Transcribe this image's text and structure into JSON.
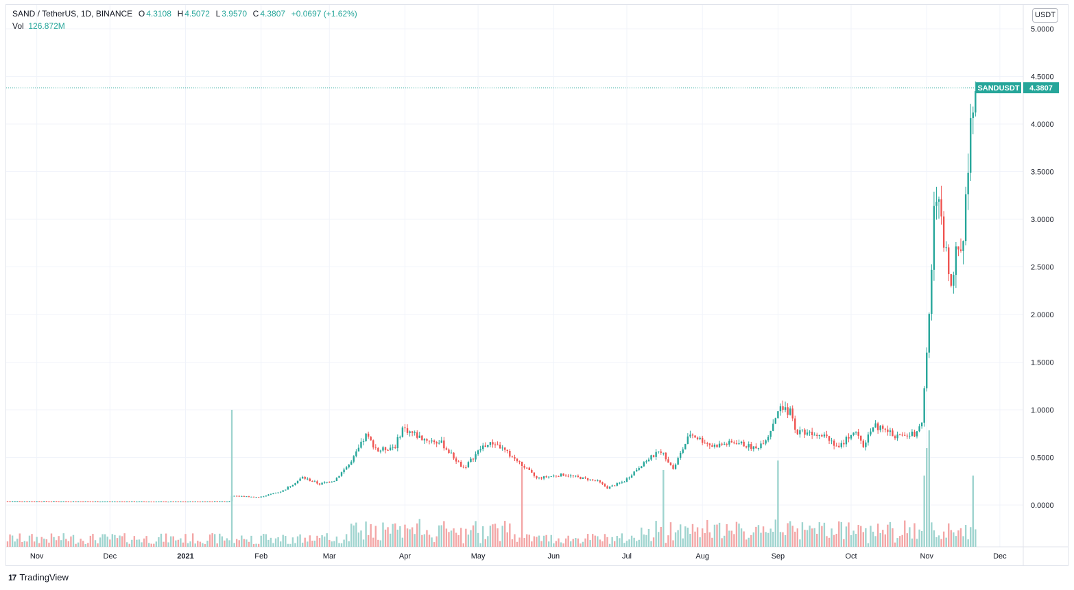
{
  "legend": {
    "symbol": "SAND / TetherUS, 1D, BINANCE",
    "open_label": "O",
    "open": "4.3108",
    "high_label": "H",
    "high": "4.5072",
    "low_label": "L",
    "low": "3.9570",
    "close_label": "C",
    "close": "4.3807",
    "change": "+0.0697 (+1.62%)",
    "vol_label": "Vol",
    "vol": "126.872M"
  },
  "currency_button": "USDT",
  "price_badge": {
    "symbol": "SANDUSDT",
    "price": "4.3807"
  },
  "branding": "TradingView",
  "colors": {
    "up": "#26a69a",
    "down": "#ef5350",
    "up_vol": "#9fd4cf",
    "down_vol": "#f3a6a6",
    "grid": "#f0f3fa",
    "badge": "#26a69a"
  },
  "chart_data": {
    "type": "candlestick",
    "ylim": [
      -0.4,
      5.2
    ],
    "y_ticks": [
      "5.0000",
      "4.5000",
      "4.0000",
      "3.5000",
      "3.0000",
      "2.5000",
      "2.0000",
      "1.5000",
      "1.0000",
      "0.5000",
      "0.0000"
    ],
    "y_tick_values": [
      5.0,
      4.5,
      4.0,
      3.5,
      3.0,
      2.5,
      2.0,
      1.5,
      1.0,
      0.5,
      0.0
    ],
    "x_ticks": [
      "Nov",
      "Dec",
      "2021",
      "Feb",
      "Mar",
      "Apr",
      "May",
      "Jun",
      "Jul",
      "Aug",
      "Sep",
      "Oct",
      "Nov",
      "Dec"
    ],
    "x_tick_dates": [
      "2020-11-01",
      "2020-12-01",
      "2021-01-01",
      "2021-02-01",
      "2021-03-01",
      "2021-04-01",
      "2021-05-01",
      "2021-06-01",
      "2021-07-01",
      "2021-08-01",
      "2021-09-01",
      "2021-10-01",
      "2021-11-01",
      "2021-12-01"
    ],
    "last_price": 4.3807,
    "close_path": [
      [
        "2020-10-20",
        0.04
      ],
      [
        "2020-12-01",
        0.038
      ],
      [
        "2021-01-01",
        0.036
      ],
      [
        "2021-01-19",
        0.04
      ],
      [
        "2021-01-20",
        0.1
      ],
      [
        "2021-01-31",
        0.08
      ],
      [
        "2021-02-10",
        0.15
      ],
      [
        "2021-02-18",
        0.29
      ],
      [
        "2021-02-25",
        0.22
      ],
      [
        "2021-03-03",
        0.26
      ],
      [
        "2021-03-10",
        0.45
      ],
      [
        "2021-03-16",
        0.73
      ],
      [
        "2021-03-21",
        0.57
      ],
      [
        "2021-03-28",
        0.62
      ],
      [
        "2021-03-31",
        0.81
      ],
      [
        "2021-04-08",
        0.7
      ],
      [
        "2021-04-16",
        0.65
      ],
      [
        "2021-04-21",
        0.5
      ],
      [
        "2021-04-25",
        0.38
      ],
      [
        "2021-05-03",
        0.62
      ],
      [
        "2021-05-08",
        0.65
      ],
      [
        "2021-05-20",
        0.4
      ],
      [
        "2021-05-25",
        0.28
      ],
      [
        "2021-06-05",
        0.32
      ],
      [
        "2021-06-19",
        0.25
      ],
      [
        "2021-06-23",
        0.18
      ],
      [
        "2021-06-30",
        0.25
      ],
      [
        "2021-07-08",
        0.45
      ],
      [
        "2021-07-15",
        0.57
      ],
      [
        "2021-07-20",
        0.38
      ],
      [
        "2021-07-27",
        0.75
      ],
      [
        "2021-08-05",
        0.62
      ],
      [
        "2021-08-15",
        0.66
      ],
      [
        "2021-08-23",
        0.59
      ],
      [
        "2021-08-28",
        0.73
      ],
      [
        "2021-09-01",
        1.0
      ],
      [
        "2021-09-06",
        0.98
      ],
      [
        "2021-09-08",
        0.78
      ],
      [
        "2021-09-20",
        0.75
      ],
      [
        "2021-09-26",
        0.6
      ],
      [
        "2021-10-02",
        0.78
      ],
      [
        "2021-10-06",
        0.62
      ],
      [
        "2021-10-10",
        0.84
      ],
      [
        "2021-10-20",
        0.72
      ],
      [
        "2021-10-27",
        0.75
      ],
      [
        "2021-10-30",
        0.9
      ],
      [
        "2021-11-01",
        1.6
      ],
      [
        "2021-11-03",
        2.4
      ],
      [
        "2021-11-04",
        3.05
      ],
      [
        "2021-11-06",
        3.2
      ],
      [
        "2021-11-08",
        2.7
      ],
      [
        "2021-11-11",
        2.4
      ],
      [
        "2021-11-14",
        2.7
      ],
      [
        "2021-11-16",
        2.8
      ],
      [
        "2021-11-17",
        3.2
      ],
      [
        "2021-11-18",
        3.6
      ],
      [
        "2021-11-19",
        4.1
      ],
      [
        "2021-11-20",
        4.3108
      ],
      [
        "2021-11-21",
        4.3807
      ]
    ],
    "volume_spikes": [
      [
        "2021-01-20",
        1.0
      ],
      [
        "2021-11-01",
        0.72
      ],
      [
        "2021-11-02",
        0.85
      ],
      [
        "2021-10-31",
        0.52
      ],
      [
        "2021-11-20",
        0.52
      ],
      [
        "2021-05-19",
        0.58
      ],
      [
        "2021-07-16",
        0.56
      ],
      [
        "2021-09-01",
        0.63
      ]
    ]
  }
}
